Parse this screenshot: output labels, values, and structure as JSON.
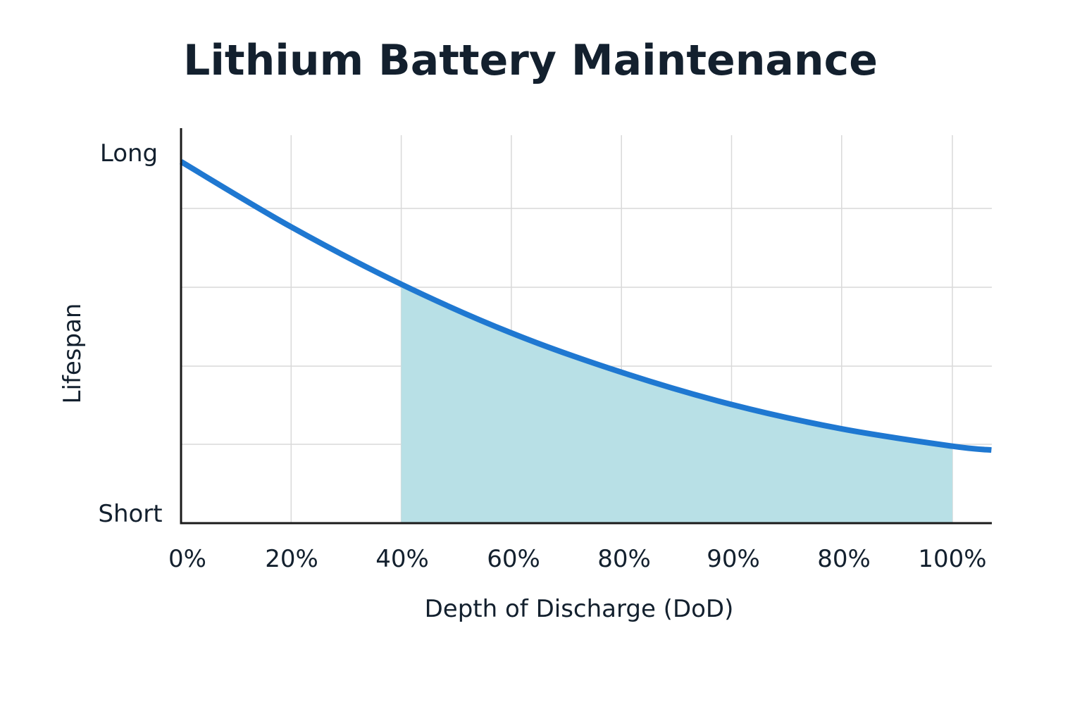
{
  "chart_data": {
    "type": "line",
    "title": "Lithium Battery Maintenance",
    "xlabel": "Depth of Discharge (DoD)",
    "ylabel": "Lifespan",
    "x_tick_labels": [
      "0%",
      "20%",
      "40%",
      "60%",
      "80%",
      "90%",
      "80%",
      "100%"
    ],
    "y_tick_labels": {
      "top": "Long",
      "bottom": "Short"
    },
    "y_range": [
      0,
      5
    ],
    "grid": true,
    "series": [
      {
        "color": "#1f78d1",
        "x_positions": [
          0,
          1,
          2,
          3,
          4,
          5,
          6,
          7,
          7.36
        ],
        "values": [
          4.6,
          3.77,
          3.04,
          2.42,
          1.92,
          1.51,
          1.2,
          0.98,
          0.93
        ]
      }
    ],
    "shaded_region": {
      "from_tick": 2,
      "to_tick": 7,
      "color": "#b8e0e6"
    }
  }
}
